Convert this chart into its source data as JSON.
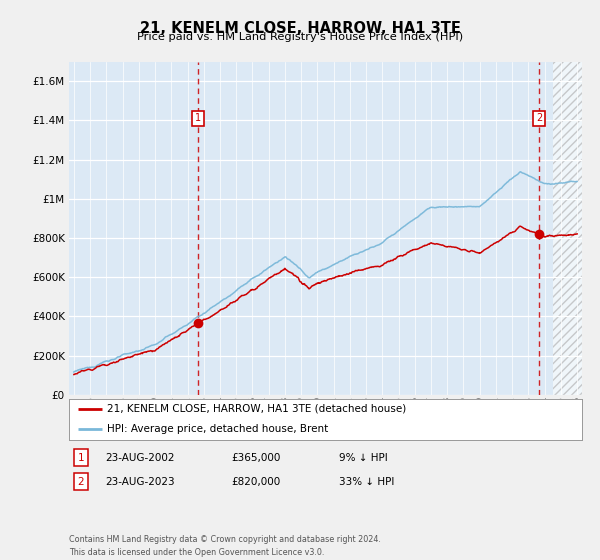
{
  "title": "21, KENELM CLOSE, HARROW, HA1 3TE",
  "subtitle": "Price paid vs. HM Land Registry's House Price Index (HPI)",
  "footer": "Contains HM Land Registry data © Crown copyright and database right 2024.\nThis data is licensed under the Open Government Licence v3.0.",
  "legend_line1": "21, KENELM CLOSE, HARROW, HA1 3TE (detached house)",
  "legend_line2": "HPI: Average price, detached house, Brent",
  "marker1_date": "23-AUG-2002",
  "marker1_price": "£365,000",
  "marker1_hpi": "9% ↓ HPI",
  "marker2_date": "23-AUG-2023",
  "marker2_price": "£820,000",
  "marker2_hpi": "33% ↓ HPI",
  "hpi_color": "#7ab8d9",
  "price_color": "#cc0000",
  "fig_bg_color": "#f0f0f0",
  "plot_bg_color": "#dce9f5",
  "grid_color": "#ffffff",
  "ylim": [
    0,
    1700000
  ],
  "yticks": [
    0,
    200000,
    400000,
    600000,
    800000,
    1000000,
    1200000,
    1400000,
    1600000
  ],
  "year_start": 1995,
  "year_end": 2026,
  "marker1_year": 2002.65,
  "marker1_value": 365000,
  "marker2_year": 2023.65,
  "marker2_value": 820000
}
